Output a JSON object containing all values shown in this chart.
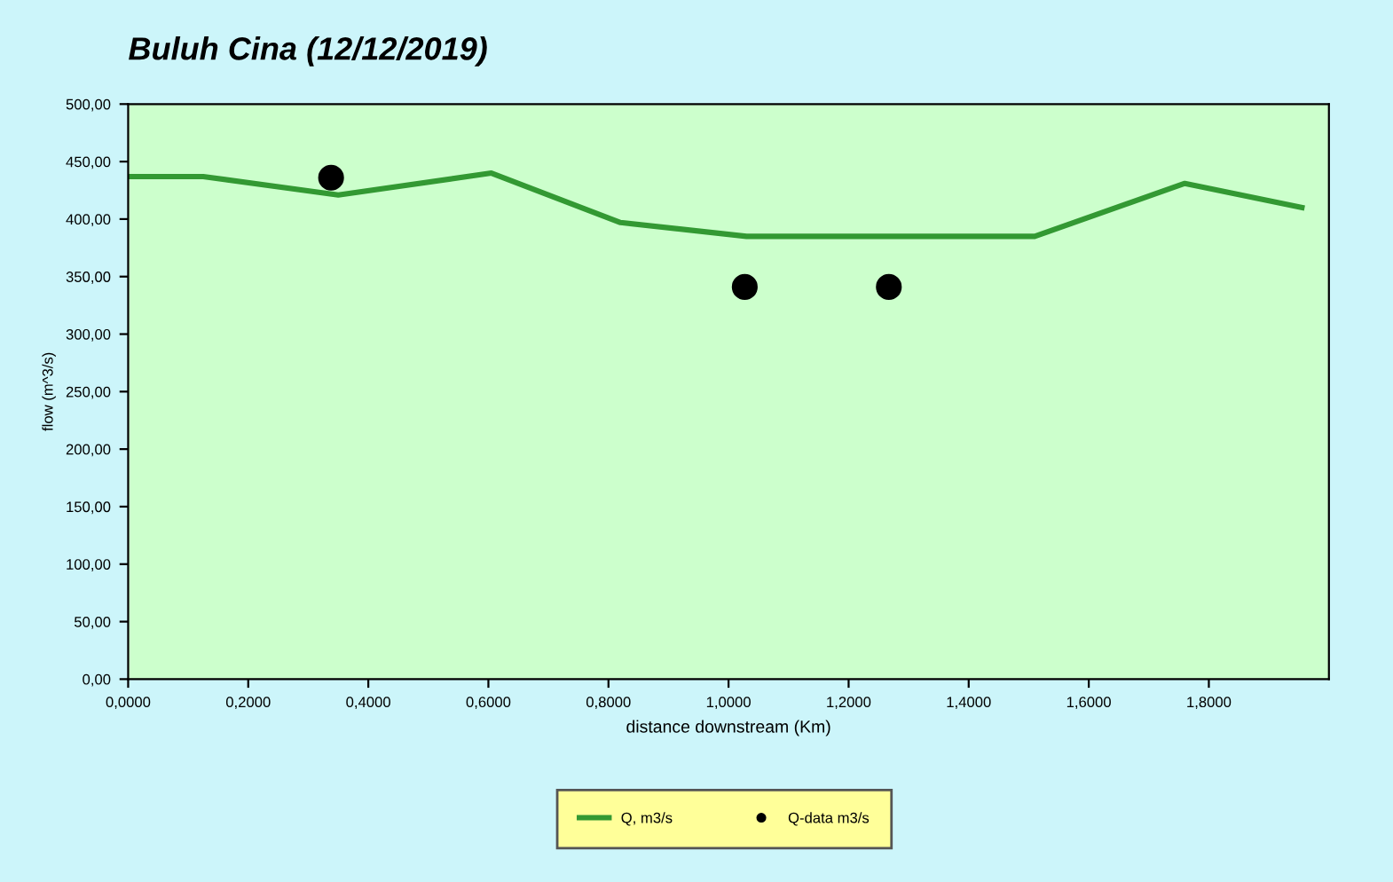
{
  "chart_data": {
    "type": "line",
    "title": "Buluh Cina (12/12/2019)",
    "xlabel": "distance downstream (Km)",
    "ylabel": "flow (m^3/s)",
    "xlim": [
      0,
      2.0
    ],
    "xticks": [
      {
        "value": 0,
        "label": "0,0000"
      },
      {
        "value": 0.2,
        "label": "0,2000"
      },
      {
        "value": 0.4,
        "label": "0,4000"
      },
      {
        "value": 0.6,
        "label": "0,6000"
      },
      {
        "value": 0.8,
        "label": "0,8000"
      },
      {
        "value": 1.0,
        "label": "1,0000"
      },
      {
        "value": 1.2,
        "label": "1,2000"
      },
      {
        "value": 1.4,
        "label": "1,4000"
      },
      {
        "value": 1.6,
        "label": "1,6000"
      },
      {
        "value": 1.8,
        "label": "1,8000"
      }
    ],
    "ylim": [
      0,
      500
    ],
    "yticks": [
      {
        "value": 0,
        "label": "0,00"
      },
      {
        "value": 50,
        "label": "50,00"
      },
      {
        "value": 100,
        "label": "100,00"
      },
      {
        "value": 150,
        "label": "150,00"
      },
      {
        "value": 200,
        "label": "200,00"
      },
      {
        "value": 250,
        "label": "250,00"
      },
      {
        "value": 300,
        "label": "300,00"
      },
      {
        "value": 350,
        "label": "350,00"
      },
      {
        "value": 400,
        "label": "400,00"
      },
      {
        "value": 450,
        "label": "450,00"
      },
      {
        "value": 500,
        "label": "500,00"
      }
    ],
    "grid": false,
    "legend": "bottom",
    "series": [
      {
        "name": "Q, m3/s",
        "color": "#339933",
        "marker": "none",
        "line_style": "solid",
        "x": [
          0.0,
          0.125,
          0.35,
          0.605,
          0.82,
          1.03,
          1.51,
          1.76,
          1.955
        ],
        "values": [
          437,
          437,
          421,
          440,
          397,
          385,
          385,
          431,
          410
        ]
      },
      {
        "name": "Q-data m3/s",
        "type": "scatter",
        "color": "#000000",
        "marker": "circle",
        "x": [
          0.338,
          1.027,
          1.267
        ],
        "values": [
          436,
          341,
          341
        ]
      }
    ]
  }
}
